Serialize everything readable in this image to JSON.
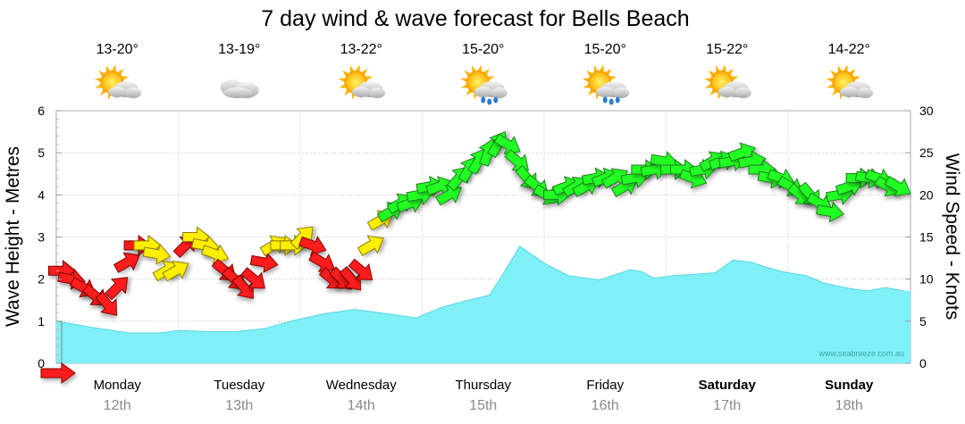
{
  "chart_data": {
    "type": "area",
    "title": "7 day wind & wave forecast for Bells Beach",
    "ylabel_left": "Wave Height - Metres",
    "ylabel_right": "Wind Speed - Knots",
    "ylim_left": [
      0,
      6
    ],
    "ylim_right": [
      0,
      30
    ],
    "yticks_left": [
      "0",
      "1",
      "2",
      "3",
      "4",
      "5",
      "6"
    ],
    "yticks_right": [
      "0",
      "5",
      "10",
      "15",
      "20",
      "25",
      "30"
    ],
    "grid": true,
    "watermark": "www.seabreeze.com.au",
    "days": [
      {
        "name": "Monday",
        "date": "12th",
        "temp": "13-20°",
        "weather": "partly-cloudy-icon",
        "bold": false
      },
      {
        "name": "Tuesday",
        "date": "13th",
        "temp": "13-19°",
        "weather": "cloudy-icon",
        "bold": false
      },
      {
        "name": "Wednesday",
        "date": "14th",
        "temp": "13-22°",
        "weather": "partly-cloudy-icon",
        "bold": false
      },
      {
        "name": "Thursday",
        "date": "15th",
        "temp": "15-20°",
        "weather": "showers-icon",
        "bold": false
      },
      {
        "name": "Friday",
        "date": "16th",
        "temp": "15-20°",
        "weather": "showers-icon",
        "bold": false
      },
      {
        "name": "Saturday",
        "date": "17th",
        "temp": "15-22°",
        "weather": "partly-cloudy-icon",
        "bold": true
      },
      {
        "name": "Sunday",
        "date": "18th",
        "temp": "14-22°",
        "weather": "partly-cloudy-icon",
        "bold": true
      }
    ],
    "wave_series": {
      "name": "",
      "x_days": [
        0,
        0.3,
        0.6,
        0.85,
        1.0,
        1.2,
        1.45,
        1.7,
        1.95,
        2.2,
        2.45,
        2.7,
        2.95,
        3.15,
        3.35,
        3.55,
        3.65,
        3.8,
        4.0,
        4.2,
        4.45,
        4.6,
        4.7,
        4.8,
        4.9,
        5.05,
        5.25,
        5.4,
        5.55,
        5.7,
        5.8,
        5.95,
        6.15,
        6.3,
        6.5,
        6.65,
        6.8,
        6.95
      ],
      "height_m": [
        1.0,
        0.85,
        0.72,
        0.72,
        0.78,
        0.76,
        0.75,
        0.82,
        1.02,
        1.18,
        1.28,
        1.18,
        1.08,
        1.32,
        1.48,
        1.62,
        2.06,
        2.78,
        2.38,
        2.08,
        1.98,
        2.12,
        2.22,
        2.18,
        2.02,
        2.08,
        2.12,
        2.15,
        2.45,
        2.4,
        2.3,
        2.18,
        2.08,
        1.9,
        1.78,
        1.72,
        1.8,
        1.72
      ]
    },
    "wind_colors": {
      "under_10": "#ff1a1a",
      "10_to_15": "#ffee00",
      "over_15": "#22ff22"
    },
    "wind_series": {
      "name": "",
      "x_days": [
        0.04,
        0.12,
        0.22,
        0.32,
        0.42,
        0.5,
        0.58,
        0.66,
        0.74,
        0.82,
        0.9,
        0.98,
        1.06,
        1.14,
        1.22,
        1.3,
        1.38,
        1.46,
        1.54,
        1.62,
        1.7,
        1.78,
        1.86,
        1.94,
        2.02,
        2.1,
        2.18,
        2.26,
        2.34,
        2.42,
        2.5,
        2.58,
        2.66,
        2.74,
        2.82,
        2.9,
        2.98,
        3.06,
        3.14,
        3.22,
        3.3,
        3.38,
        3.46,
        3.54,
        3.62,
        3.7,
        3.78,
        3.86,
        3.94,
        4.02,
        4.1,
        4.18,
        4.26,
        4.34,
        4.42,
        4.5,
        4.58,
        4.66,
        4.74,
        4.82,
        4.9,
        4.98,
        5.06,
        5.14,
        5.22,
        5.3,
        5.38,
        5.46,
        5.54,
        5.62,
        5.7,
        5.78,
        5.86,
        5.94,
        6.02,
        6.1,
        6.18,
        6.26,
        6.34,
        6.42,
        6.5,
        6.58,
        6.66,
        6.74,
        6.82,
        6.9
      ],
      "speed_kn": [
        11,
        10,
        9,
        8,
        7,
        9,
        12,
        14,
        14,
        13,
        11,
        11,
        14,
        15,
        14,
        13,
        11,
        10,
        9,
        10,
        12,
        14,
        14,
        14,
        15,
        14,
        12,
        10,
        10,
        10,
        11,
        14,
        17,
        18,
        19,
        19,
        20,
        21,
        21,
        20,
        22,
        23,
        24,
        25,
        26,
        26,
        24,
        22,
        21,
        20,
        20,
        21,
        21,
        21,
        22,
        22,
        22,
        21,
        22,
        23,
        23,
        24,
        23,
        23,
        22,
        23,
        24,
        24,
        24,
        25,
        24,
        23,
        22,
        22,
        21,
        20,
        20,
        19,
        18,
        20,
        21,
        22,
        22,
        22,
        21,
        21
      ],
      "direction_deg": [
        90,
        100,
        120,
        130,
        140,
        45,
        60,
        90,
        90,
        100,
        60,
        60,
        45,
        90,
        100,
        110,
        130,
        135,
        140,
        130,
        100,
        60,
        90,
        90,
        45,
        110,
        120,
        130,
        135,
        140,
        130,
        60,
        60,
        60,
        60,
        70,
        80,
        80,
        70,
        60,
        40,
        30,
        30,
        20,
        30,
        120,
        130,
        140,
        130,
        120,
        90,
        70,
        60,
        60,
        80,
        70,
        60,
        60,
        80,
        90,
        80,
        100,
        90,
        90,
        110,
        80,
        60,
        70,
        80,
        70,
        80,
        90,
        100,
        110,
        120,
        130,
        140,
        120,
        100,
        80,
        70,
        90,
        100,
        110,
        120,
        120
      ],
      "color_band": [
        "r",
        "r",
        "r",
        "r",
        "r",
        "r",
        "r",
        "r",
        "y",
        "y",
        "y",
        "y",
        "r",
        "y",
        "y",
        "y",
        "r",
        "r",
        "r",
        "r",
        "r",
        "y",
        "y",
        "y",
        "y",
        "r",
        "r",
        "r",
        "r",
        "r",
        "r",
        "y",
        "y",
        "g",
        "g",
        "g",
        "g",
        "g",
        "g",
        "g",
        "g",
        "g",
        "g",
        "g",
        "g",
        "g",
        "g",
        "g",
        "g",
        "g",
        "g",
        "g",
        "g",
        "g",
        "g",
        "g",
        "g",
        "g",
        "g",
        "g",
        "g",
        "g",
        "g",
        "g",
        "g",
        "g",
        "g",
        "g",
        "g",
        "g",
        "g",
        "g",
        "g",
        "g",
        "g",
        "g",
        "g",
        "g",
        "g",
        "g",
        "g",
        "g",
        "g",
        "g",
        "g",
        "g"
      ]
    }
  }
}
